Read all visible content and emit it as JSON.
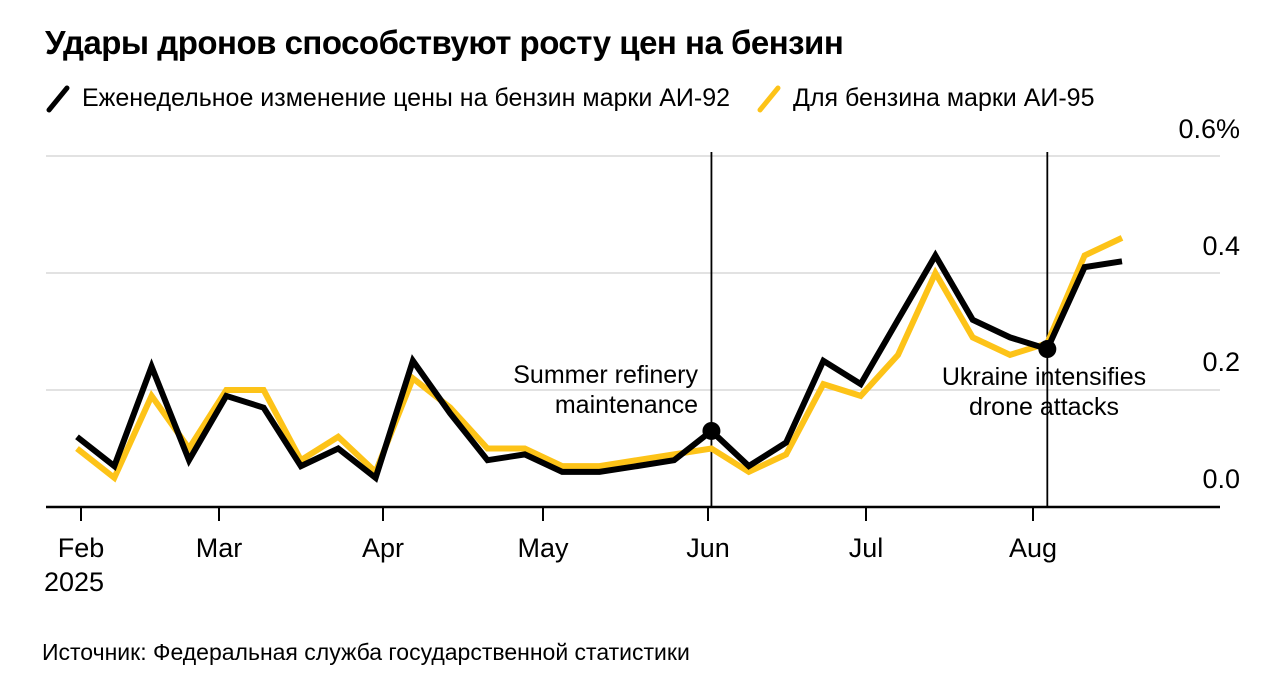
{
  "title": "Удары дронов способствуют росту цен на бензин",
  "legend": [
    {
      "label": "Еженедельное изменение цены на бензин марки АИ-92",
      "color": "#000000"
    },
    {
      "label": "Для бензина марки АИ-95",
      "color": "#FDC318"
    }
  ],
  "annotations": [
    {
      "line1": "Summer refinery",
      "line2": "maintenance",
      "week_index": 17
    },
    {
      "line1": "Ukraine intensifies",
      "line2": "drone attacks",
      "week_index": 26
    }
  ],
  "source": "Источник: Федеральная служба государственной статистики",
  "chart_data": {
    "type": "line",
    "unit": "%",
    "title": "Удары дронов способствуют росту цен на бензин",
    "x_weeks": [
      "Feb 3",
      "Feb 10",
      "Feb 17",
      "Feb 24",
      "Mar 3",
      "Mar 10",
      "Mar 17",
      "Mar 24",
      "Mar 31",
      "Apr 7",
      "Apr 14",
      "Apr 21",
      "Apr 28",
      "May 5",
      "May 12",
      "May 19",
      "May 26",
      "Jun 2",
      "Jun 9",
      "Jun 16",
      "Jun 23",
      "Jun 30",
      "Jul 7",
      "Jul 14",
      "Jul 21",
      "Jul 28",
      "Aug 4",
      "Aug 11",
      "Aug 18"
    ],
    "series": [
      {
        "name": "Еженедельное изменение цены на бензин марки АИ-92",
        "short_name": "AI-92",
        "color": "#000000",
        "values": [
          0.12,
          0.07,
          0.24,
          0.08,
          0.19,
          0.17,
          0.07,
          0.1,
          0.05,
          0.25,
          0.16,
          0.08,
          0.09,
          0.06,
          0.06,
          0.07,
          0.08,
          0.13,
          0.07,
          0.11,
          0.25,
          0.21,
          0.32,
          0.43,
          0.32,
          0.29,
          0.27,
          0.41,
          0.42
        ]
      },
      {
        "name": "Для бензина марки АИ-95",
        "short_name": "AI-95",
        "color": "#FDC318",
        "values": [
          0.1,
          0.05,
          0.19,
          0.1,
          0.2,
          0.2,
          0.08,
          0.12,
          0.06,
          0.22,
          0.17,
          0.1,
          0.1,
          0.07,
          0.07,
          0.08,
          0.09,
          0.1,
          0.06,
          0.09,
          0.21,
          0.19,
          0.26,
          0.4,
          0.29,
          0.26,
          0.28,
          0.43,
          0.46
        ]
      }
    ],
    "ylim": [
      0,
      0.6
    ],
    "yticklabels": [
      "0.0",
      "0.2",
      "0.4",
      "0.6%"
    ],
    "xticklabels": [
      "Feb",
      "Mar",
      "Apr",
      "May",
      "Jun",
      "Jul",
      "Aug"
    ],
    "x_year": "2025",
    "grid": "horizontal",
    "legend_position": "top"
  }
}
